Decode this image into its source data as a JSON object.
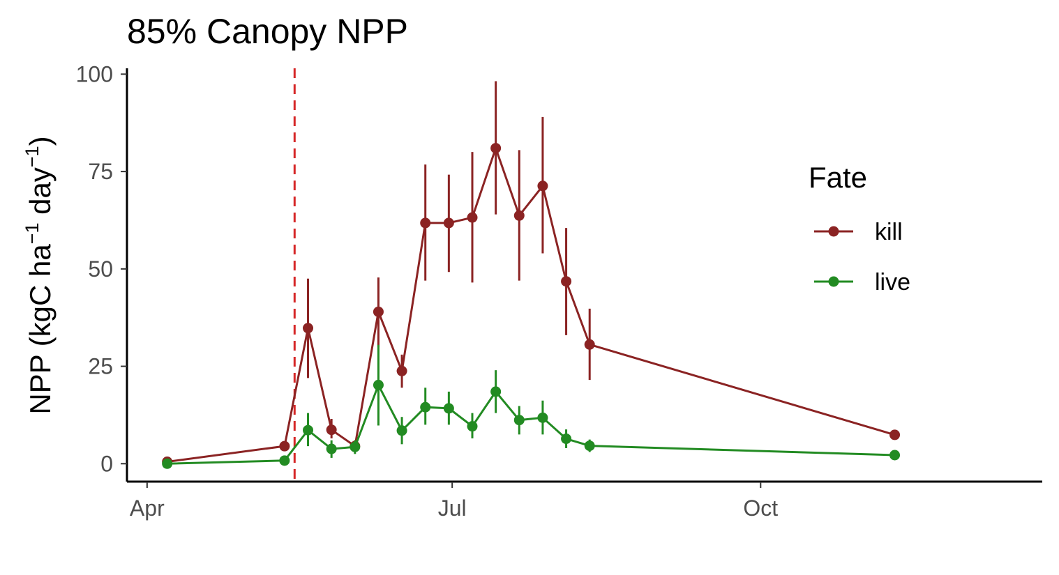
{
  "chart_data": {
    "type": "line",
    "title": "85% Canopy NPP",
    "xlabel": "",
    "ylabel": "NPP (kgC ha⁻¹ day⁻¹)",
    "ylabel_parts": [
      "NPP (kgC ha",
      "−1",
      " day",
      "−1",
      ")"
    ],
    "x_ticks": [
      {
        "date": "2022-04-01",
        "label": "Apr"
      },
      {
        "date": "2022-07-01",
        "label": "Jul"
      },
      {
        "date": "2022-10-01",
        "label": "Oct"
      }
    ],
    "xlim": [
      "2022-03-26",
      "2022-12-24"
    ],
    "ylim": [
      -4.6,
      101.5
    ],
    "y_ticks": [
      0,
      25,
      50,
      75,
      100
    ],
    "grid": false,
    "vline": {
      "date": "2022-05-15",
      "color": "#d62728",
      "style": "dashed"
    },
    "legend": {
      "title": "Fate",
      "position": "right"
    },
    "series": [
      {
        "name": "kill",
        "color": "#8b2323",
        "points": [
          {
            "date": "2022-04-07",
            "y": 0.5,
            "lo": 0.0,
            "hi": 1.0
          },
          {
            "date": "2022-05-12",
            "y": 4.5,
            "lo": 3.5,
            "hi": 5.5
          },
          {
            "date": "2022-05-19",
            "y": 34.8,
            "lo": 22.0,
            "hi": 47.5
          },
          {
            "date": "2022-05-26",
            "y": 8.7,
            "lo": 6.5,
            "hi": 11.5
          },
          {
            "date": "2022-06-02",
            "y": 4.5,
            "lo": 3.0,
            "hi": 6.0
          },
          {
            "date": "2022-06-09",
            "y": 39.0,
            "lo": 30.0,
            "hi": 47.8
          },
          {
            "date": "2022-06-16",
            "y": 23.8,
            "lo": 19.5,
            "hi": 28.0
          },
          {
            "date": "2022-06-23",
            "y": 61.8,
            "lo": 47.0,
            "hi": 76.8
          },
          {
            "date": "2022-06-30",
            "y": 61.8,
            "lo": 49.2,
            "hi": 74.2
          },
          {
            "date": "2022-07-07",
            "y": 63.2,
            "lo": 46.5,
            "hi": 80.0
          },
          {
            "date": "2022-07-14",
            "y": 81.0,
            "lo": 64.0,
            "hi": 98.2
          },
          {
            "date": "2022-07-21",
            "y": 63.7,
            "lo": 47.0,
            "hi": 80.5
          },
          {
            "date": "2022-07-28",
            "y": 71.3,
            "lo": 54.0,
            "hi": 89.0
          },
          {
            "date": "2022-08-04",
            "y": 46.8,
            "lo": 33.0,
            "hi": 60.5
          },
          {
            "date": "2022-08-11",
            "y": 30.6,
            "lo": 21.5,
            "hi": 39.8
          },
          {
            "date": "2022-11-10",
            "y": 7.4,
            "lo": 6.5,
            "hi": 8.3
          }
        ]
      },
      {
        "name": "live",
        "color": "#228b22",
        "points": [
          {
            "date": "2022-04-07",
            "y": 0.0,
            "lo": -0.5,
            "hi": 0.5
          },
          {
            "date": "2022-05-12",
            "y": 0.8,
            "lo": 0.0,
            "hi": 1.6
          },
          {
            "date": "2022-05-19",
            "y": 8.6,
            "lo": 4.5,
            "hi": 13.0
          },
          {
            "date": "2022-05-26",
            "y": 3.8,
            "lo": 1.5,
            "hi": 6.0
          },
          {
            "date": "2022-06-02",
            "y": 4.3,
            "lo": 2.5,
            "hi": 6.0
          },
          {
            "date": "2022-06-09",
            "y": 20.2,
            "lo": 9.8,
            "hi": 30.5
          },
          {
            "date": "2022-06-16",
            "y": 8.5,
            "lo": 5.0,
            "hi": 12.0
          },
          {
            "date": "2022-06-23",
            "y": 14.5,
            "lo": 10.0,
            "hi": 19.5
          },
          {
            "date": "2022-06-30",
            "y": 14.2,
            "lo": 10.0,
            "hi": 18.5
          },
          {
            "date": "2022-07-07",
            "y": 9.6,
            "lo": 6.5,
            "hi": 13.0
          },
          {
            "date": "2022-07-14",
            "y": 18.5,
            "lo": 13.0,
            "hi": 24.0
          },
          {
            "date": "2022-07-21",
            "y": 11.2,
            "lo": 7.5,
            "hi": 14.8
          },
          {
            "date": "2022-07-28",
            "y": 11.8,
            "lo": 7.5,
            "hi": 16.2
          },
          {
            "date": "2022-08-04",
            "y": 6.4,
            "lo": 4.0,
            "hi": 8.8
          },
          {
            "date": "2022-08-11",
            "y": 4.6,
            "lo": 3.0,
            "hi": 6.2
          },
          {
            "date": "2022-11-10",
            "y": 2.2,
            "lo": 1.5,
            "hi": 2.9
          }
        ]
      }
    ]
  }
}
